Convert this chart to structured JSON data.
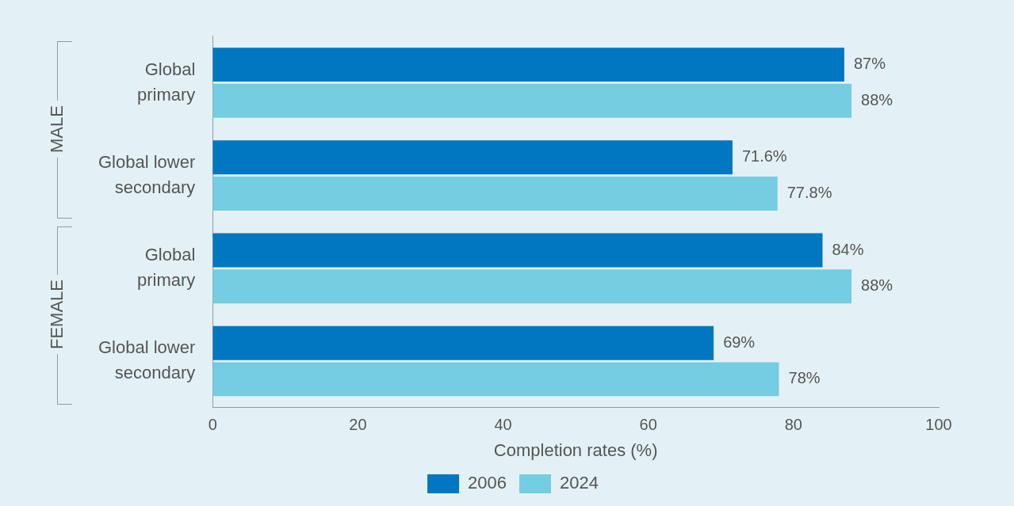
{
  "chart_data": {
    "type": "bar",
    "orientation": "horizontal",
    "xlabel": "Completion rates (%)",
    "categories": [
      "Global primary",
      "Global lower secondary",
      "Global primary",
      "Global lower secondary"
    ],
    "series": [
      {
        "name": "2006",
        "color": "#0077c0",
        "values": [
          87,
          71.6,
          84,
          69
        ],
        "value_labels": [
          "87%",
          "71.6%",
          "84%",
          "69%"
        ]
      },
      {
        "name": "2024",
        "color": "#74cde0",
        "values": [
          88,
          77.8,
          88,
          78
        ],
        "value_labels": [
          "88%",
          "77.8%",
          "88%",
          "78%"
        ]
      }
    ],
    "xlim": [
      0,
      100
    ],
    "xticks": [
      0,
      20,
      40,
      60,
      80,
      100
    ],
    "grid": false,
    "legend": "bottom",
    "annotations": [
      "MALE",
      "FEMALE"
    ]
  }
}
